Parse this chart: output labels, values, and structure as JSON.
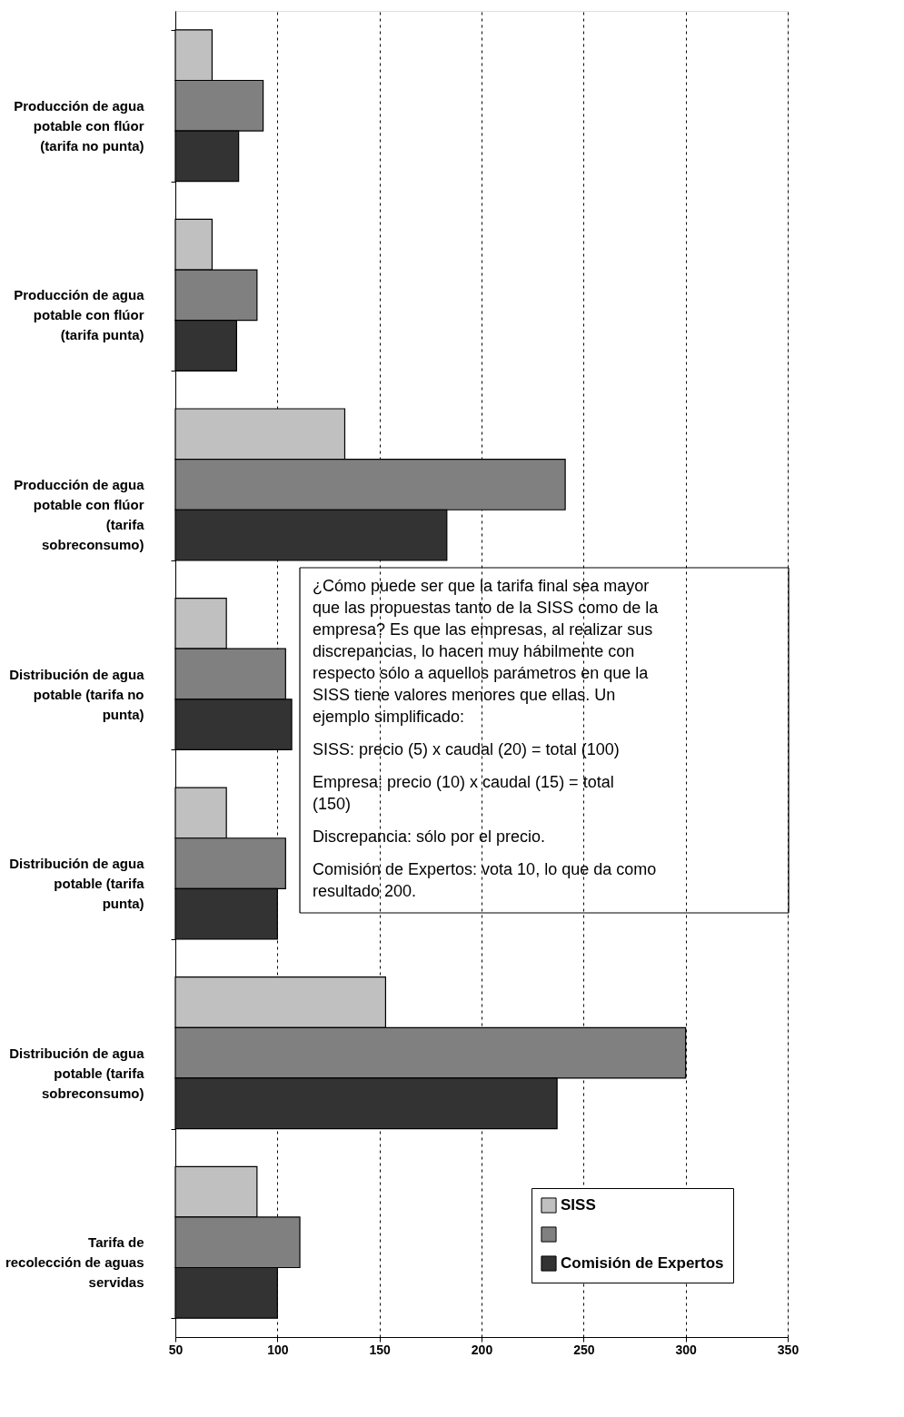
{
  "chart_data": {
    "type": "bar",
    "orientation": "horizontal",
    "categories": [
      "Producción de agua potable con flúor (tarifa no punta)",
      "Producción de agua potable con flúor (tarifa punta)",
      "Producción de agua potable con flúor (tarifa sobreconsumo)",
      "Distribución de agua potable (tarifa no punta)",
      "Distribución de agua potable (tarifa punta)",
      "Distribución de agua potable (tarifa sobreconsumo)",
      "Tarifa de recolección de aguas servidas"
    ],
    "series": [
      {
        "name": "SISS",
        "color": "#c0c0c0",
        "values": [
          68,
          68,
          133,
          75,
          75,
          153,
          90
        ]
      },
      {
        "color": "#808080",
        "values": [
          93,
          90,
          241,
          104,
          104,
          300,
          111
        ]
      },
      {
        "name": "Comisión de Expertos",
        "color": "#333333",
        "values": [
          81,
          80,
          183,
          107,
          100,
          237,
          100
        ]
      }
    ],
    "xlim": [
      50,
      350
    ],
    "xticks": [
      50,
      100,
      150,
      200,
      250,
      300,
      350
    ],
    "grid": "x",
    "legend": "bottom right",
    "annotations": [
      "¿Cómo puede ser que la tarifa final sea mayor que las propuestas tanto de la SISS como de la empresa? Es que las empresas, al realizar sus discrepancias, lo hacen muy hábilmente con respecto sólo a aquellos parámetros en que la SISS tiene valores menores que ellas. Un ejemplo simplificado:",
      "SISS: precio (5) x caudal (20) = total (100)",
      "Empresa: precio (10) x caudal (15) = total (150)",
      "Discrepancia: sólo por el precio.",
      "Comisión de Expertos: vota 10, lo que da como resultado 200."
    ]
  }
}
